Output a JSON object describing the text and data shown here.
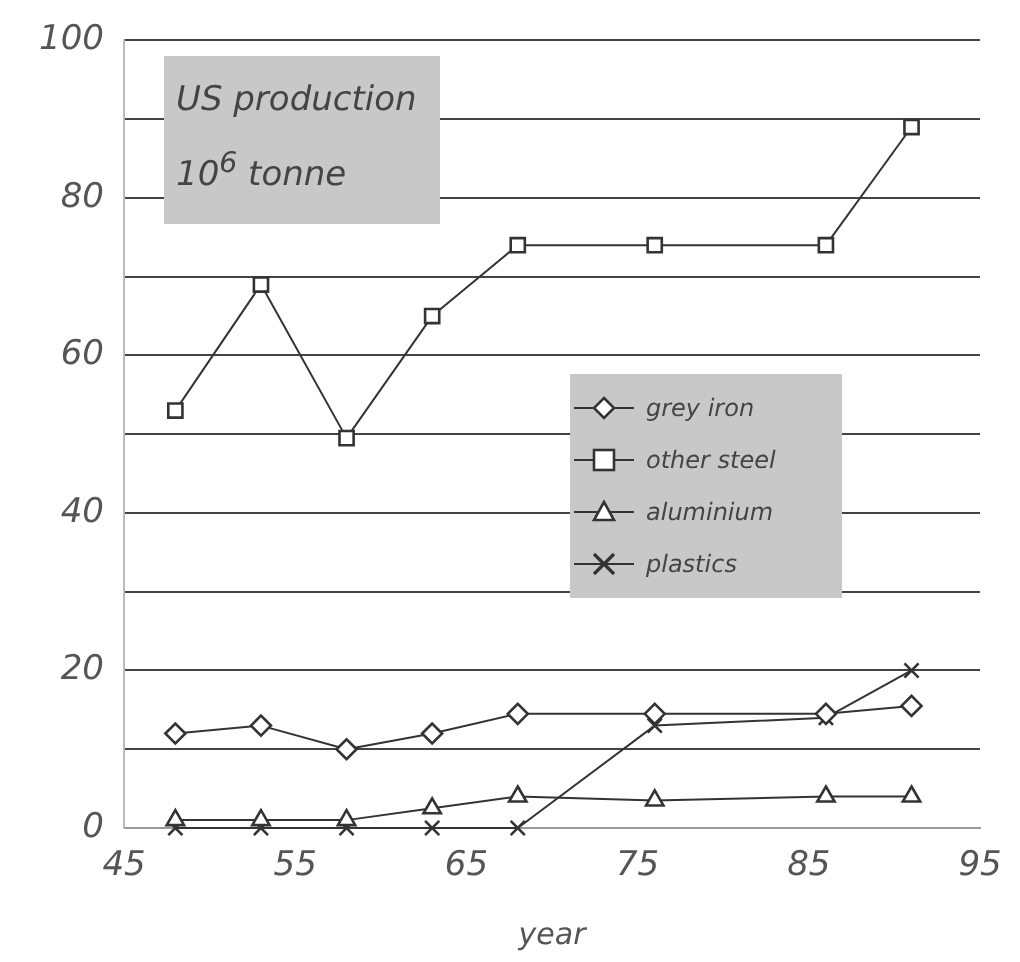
{
  "chart_data": {
    "type": "line",
    "title": "US production",
    "subtitle": "10$^{6}$ tonne",
    "xlabel": "year",
    "x": [
      48,
      53,
      58,
      63,
      68,
      76,
      86,
      91
    ],
    "series": [
      {
        "name": "grey iron",
        "color": "#333333",
        "marker": "diamond",
        "values": [
          12,
          13,
          10,
          12,
          14.5,
          14.5,
          14.5,
          15.5
        ]
      },
      {
        "name": "other steel",
        "color": "#333333",
        "marker": "square",
        "values": [
          53,
          69,
          49.5,
          65,
          74,
          74,
          74,
          89
        ]
      },
      {
        "name": "aluminium",
        "color": "#333333",
        "marker": "triangle",
        "values": [
          1,
          1,
          1,
          2.5,
          4,
          3.5,
          4,
          4
        ]
      },
      {
        "name": "plastics",
        "color": "#333333",
        "marker": "cross",
        "values": [
          0,
          0,
          0,
          0,
          0,
          13,
          14,
          20
        ]
      }
    ],
    "xlim": [
      45,
      95
    ],
    "xticks": [
      45,
      55,
      65,
      75,
      85,
      95
    ],
    "ylim": [
      0,
      100
    ],
    "yticks": [
      0,
      {
        "value": 10,
        "label": null
      },
      20,
      {
        "value": 30,
        "label": null
      },
      40,
      {
        "value": 50,
        "label": null
      },
      60,
      {
        "value": 70,
        "label": null
      },
      80,
      {
        "value": 90,
        "label": null
      },
      100
    ],
    "grid": "y",
    "legend": "center right",
    "line_style": "solid"
  }
}
